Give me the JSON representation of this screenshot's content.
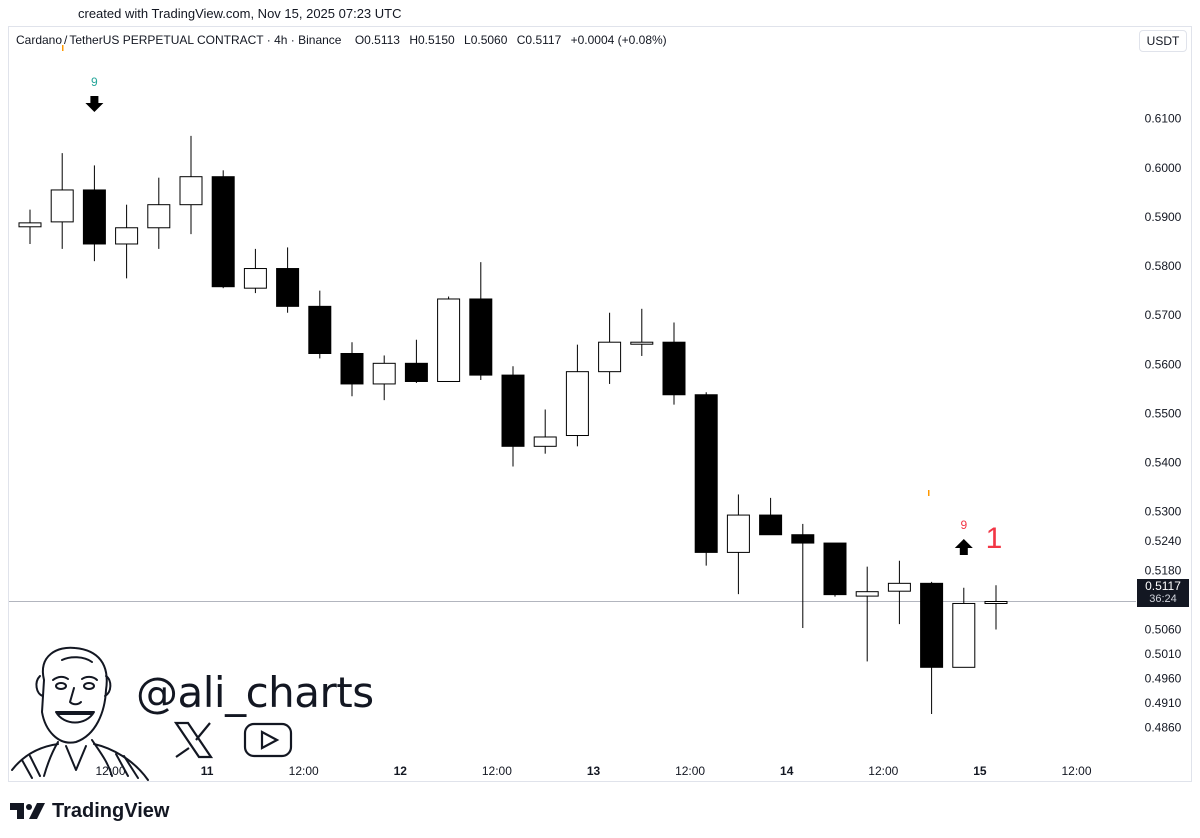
{
  "header": {
    "created_text": "created with TradingView.com, Nov 15, 2025 07:23 UTC",
    "symbol": "Cardano",
    "slash": "/",
    "pair_rest": "TetherUS PERPETUAL CONTRACT · 4h · Binance",
    "ohlc": [
      "O0.5113",
      "H0.5150",
      "L0.5060",
      "C0.5117",
      "+0.0004 (+0.08%)"
    ],
    "currency": "USDT"
  },
  "watermark": {
    "handle": "@ali_charts",
    "icons": [
      "avatar-portrait-icon",
      "x-logo-icon",
      "youtube-play-icon"
    ]
  },
  "footer": {
    "brand": "TradingView",
    "logo_icon": "tradingview-logo-icon"
  },
  "price_tag": {
    "price": "0.5117",
    "countdown": "36:24"
  },
  "colors": {
    "bear": "#000000",
    "bull": "#ffffff",
    "outline": "#000000",
    "signal_green": "#26a69a",
    "signal_red": "#f23645",
    "orange": "#ff9800"
  },
  "chart_data": {
    "type": "candlestick",
    "timeframe": "4h",
    "ylim": [
      0.4835,
      0.6185
    ],
    "y_ticks": [
      0.61,
      0.6,
      0.59,
      0.58,
      0.57,
      0.56,
      0.55,
      0.54,
      0.53,
      0.524,
      0.518,
      0.506,
      0.501,
      0.496,
      0.491,
      0.486
    ],
    "y_tick_labels": [
      "0.6100",
      "0.6000",
      "0.5900",
      "0.5800",
      "0.5700",
      "0.5600",
      "0.5500",
      "0.5400",
      "0.5300",
      "0.5240",
      "0.5180",
      "0.5060",
      "0.5010",
      "0.4960",
      "0.4910",
      "0.4860"
    ],
    "x_tick_labels": [
      {
        "label": "12:00",
        "index": 2.5,
        "bold": false
      },
      {
        "label": "11",
        "index": 5.5,
        "bold": true
      },
      {
        "label": "12:00",
        "index": 8.5,
        "bold": false
      },
      {
        "label": "12",
        "index": 11.5,
        "bold": true
      },
      {
        "label": "12:00",
        "index": 14.5,
        "bold": false
      },
      {
        "label": "13",
        "index": 17.5,
        "bold": true
      },
      {
        "label": "12:00",
        "index": 20.5,
        "bold": false
      },
      {
        "label": "14",
        "index": 23.5,
        "bold": true
      },
      {
        "label": "12:00",
        "index": 26.5,
        "bold": false
      },
      {
        "label": "15",
        "index": 29.5,
        "bold": true
      },
      {
        "label": "12:00",
        "index": 32.5,
        "bold": false
      }
    ],
    "candles": [
      {
        "o": 0.588,
        "h": 0.5915,
        "l": 0.5845,
        "c": 0.5888
      },
      {
        "o": 0.589,
        "h": 0.603,
        "l": 0.5835,
        "c": 0.5955
      },
      {
        "o": 0.5955,
        "h": 0.6005,
        "l": 0.581,
        "c": 0.5845
      },
      {
        "o": 0.5845,
        "h": 0.5925,
        "l": 0.5775,
        "c": 0.5878
      },
      {
        "o": 0.5878,
        "h": 0.598,
        "l": 0.5835,
        "c": 0.5925
      },
      {
        "o": 0.5925,
        "h": 0.6065,
        "l": 0.5865,
        "c": 0.5982
      },
      {
        "o": 0.5982,
        "h": 0.5995,
        "l": 0.5755,
        "c": 0.5758
      },
      {
        "o": 0.5755,
        "h": 0.5835,
        "l": 0.5745,
        "c": 0.5795
      },
      {
        "o": 0.5795,
        "h": 0.5838,
        "l": 0.5705,
        "c": 0.5718
      },
      {
        "o": 0.5718,
        "h": 0.575,
        "l": 0.5612,
        "c": 0.5622
      },
      {
        "o": 0.5622,
        "h": 0.5645,
        "l": 0.5535,
        "c": 0.556
      },
      {
        "o": 0.556,
        "h": 0.5618,
        "l": 0.5527,
        "c": 0.5602
      },
      {
        "o": 0.5602,
        "h": 0.565,
        "l": 0.5562,
        "c": 0.5565
      },
      {
        "o": 0.5565,
        "h": 0.5738,
        "l": 0.5565,
        "c": 0.5733
      },
      {
        "o": 0.5733,
        "h": 0.5808,
        "l": 0.5568,
        "c": 0.5578
      },
      {
        "o": 0.5578,
        "h": 0.5596,
        "l": 0.5392,
        "c": 0.5433
      },
      {
        "o": 0.5433,
        "h": 0.5508,
        "l": 0.5418,
        "c": 0.5452
      },
      {
        "o": 0.5455,
        "h": 0.564,
        "l": 0.5433,
        "c": 0.5585
      },
      {
        "o": 0.5585,
        "h": 0.5705,
        "l": 0.556,
        "c": 0.5645
      },
      {
        "o": 0.5645,
        "h": 0.5713,
        "l": 0.5617,
        "c": 0.5645
      },
      {
        "o": 0.5645,
        "h": 0.5685,
        "l": 0.5518,
        "c": 0.5538
      },
      {
        "o": 0.5538,
        "h": 0.5543,
        "l": 0.519,
        "c": 0.5217
      },
      {
        "o": 0.5217,
        "h": 0.5335,
        "l": 0.5132,
        "c": 0.5293
      },
      {
        "o": 0.5293,
        "h": 0.5328,
        "l": 0.5255,
        "c": 0.5253
      },
      {
        "o": 0.5253,
        "h": 0.5275,
        "l": 0.5063,
        "c": 0.5236
      },
      {
        "o": 0.5236,
        "h": 0.5236,
        "l": 0.5127,
        "c": 0.5131
      },
      {
        "o": 0.5128,
        "h": 0.5188,
        "l": 0.4995,
        "c": 0.5137
      },
      {
        "o": 0.5138,
        "h": 0.52,
        "l": 0.5071,
        "c": 0.5154
      },
      {
        "o": 0.5154,
        "h": 0.5157,
        "l": 0.4888,
        "c": 0.4983
      },
      {
        "o": 0.4983,
        "h": 0.5145,
        "l": 0.4983,
        "c": 0.5113
      },
      {
        "o": 0.5113,
        "h": 0.515,
        "l": 0.506,
        "c": 0.5117
      }
    ],
    "last_price": 0.5117,
    "annotations": [
      {
        "type": "count",
        "text": "9",
        "index": 2,
        "color": "green"
      },
      {
        "type": "arrow-down",
        "index": 2
      },
      {
        "type": "count",
        "text": "9",
        "index": 29,
        "color": "red"
      },
      {
        "type": "arrow-up",
        "index": 29
      },
      {
        "type": "count-large",
        "text": "1",
        "index": 30,
        "color": "red"
      }
    ],
    "grid": false
  }
}
